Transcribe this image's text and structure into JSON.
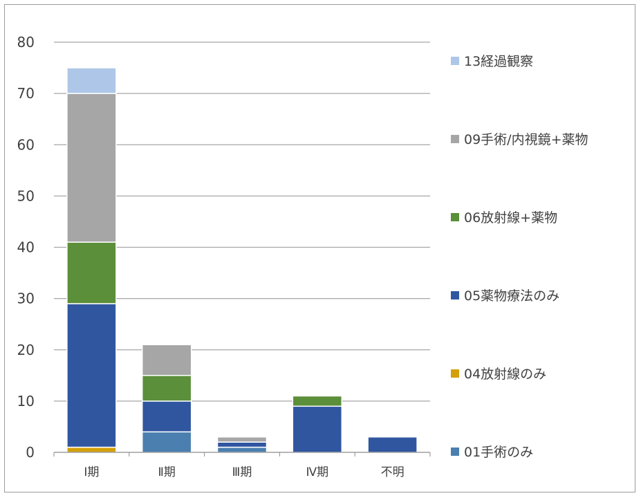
{
  "chart_data": {
    "type": "bar",
    "stacked": true,
    "categories": [
      "Ⅰ期",
      "Ⅱ期",
      "Ⅲ期",
      "Ⅳ期",
      "不明"
    ],
    "ylim": [
      0,
      80
    ],
    "yticks": [
      0,
      10,
      20,
      30,
      40,
      50,
      60,
      70,
      80
    ],
    "grid": true,
    "legend_position": "right",
    "series": [
      {
        "name": "01手術のみ",
        "color": "#4a7fb0",
        "values": [
          0,
          4,
          1,
          0,
          0
        ]
      },
      {
        "name": "04放射線のみ",
        "color": "#d4a00a",
        "values": [
          1,
          0,
          0,
          0,
          0
        ]
      },
      {
        "name": "05薬物療法のみ",
        "color": "#3056a0",
        "values": [
          28,
          6,
          1,
          9,
          3
        ]
      },
      {
        "name": "06放射線+薬物",
        "color": "#5b8f3a",
        "values": [
          12,
          5,
          0,
          2,
          0
        ]
      },
      {
        "name": "09手術/内視鏡+薬物",
        "color": "#a6a6a6",
        "values": [
          29,
          6,
          1,
          0,
          0
        ]
      },
      {
        "name": "13経過観察",
        "color": "#aec7e8",
        "values": [
          5,
          0,
          0,
          0,
          0
        ]
      }
    ]
  }
}
